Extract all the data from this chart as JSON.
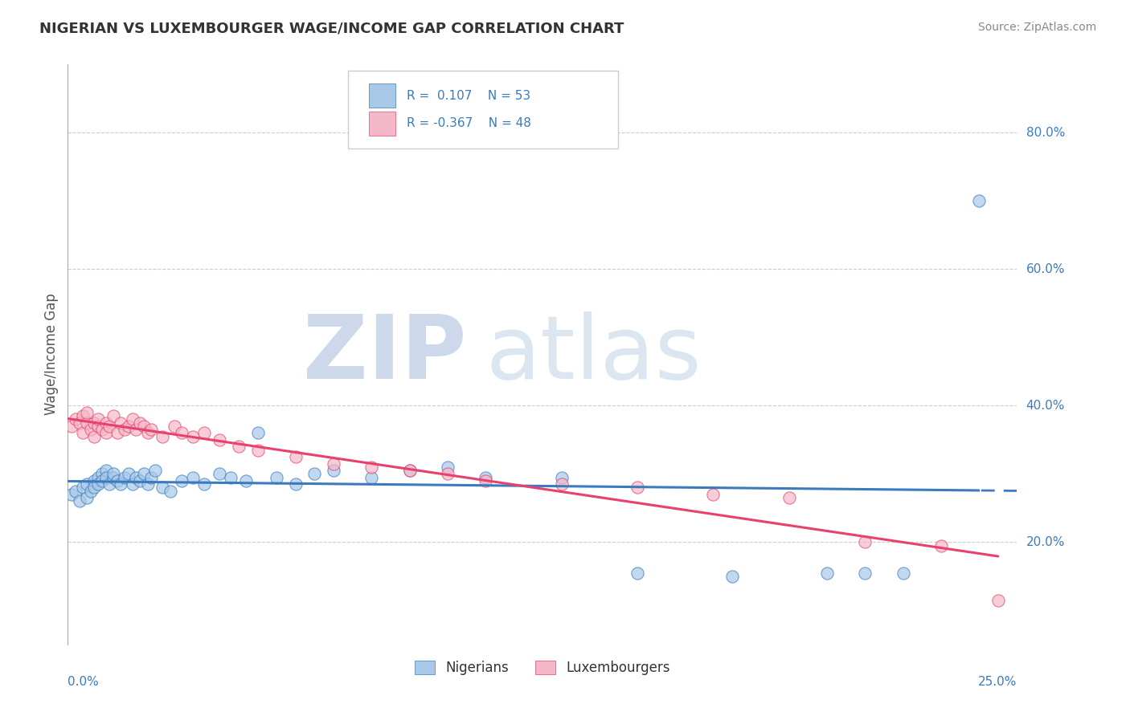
{
  "title": "NIGERIAN VS LUXEMBOURGER WAGE/INCOME GAP CORRELATION CHART",
  "source": "Source: ZipAtlas.com",
  "ylabel": "Wage/Income Gap",
  "legend_label1": "Nigerians",
  "legend_label2": "Luxembourgers",
  "R1": 0.107,
  "N1": 53,
  "R2": -0.367,
  "N2": 48,
  "blue_color": "#a8c8e8",
  "pink_color": "#f4b8c8",
  "trend_blue": "#3a7bbf",
  "trend_pink": "#e8416e",
  "xlim": [
    0,
    0.25
  ],
  "ylim": [
    0.05,
    0.9
  ],
  "ytick_vals": [
    0.2,
    0.4,
    0.6,
    0.8
  ],
  "ytick_labels": [
    "20.0%",
    "40.0%",
    "60.0%",
    "80.0%"
  ],
  "nigerian_x": [
    0.001,
    0.002,
    0.003,
    0.004,
    0.005,
    0.005,
    0.006,
    0.007,
    0.007,
    0.008,
    0.008,
    0.009,
    0.009,
    0.01,
    0.01,
    0.011,
    0.012,
    0.012,
    0.013,
    0.014,
    0.015,
    0.016,
    0.017,
    0.018,
    0.019,
    0.02,
    0.021,
    0.022,
    0.023,
    0.025,
    0.027,
    0.03,
    0.033,
    0.036,
    0.04,
    0.043,
    0.047,
    0.05,
    0.055,
    0.06,
    0.065,
    0.07,
    0.08,
    0.09,
    0.1,
    0.11,
    0.13,
    0.15,
    0.175,
    0.2,
    0.21,
    0.22,
    0.24
  ],
  "nigerian_y": [
    0.27,
    0.275,
    0.26,
    0.28,
    0.265,
    0.285,
    0.275,
    0.29,
    0.28,
    0.295,
    0.285,
    0.3,
    0.29,
    0.305,
    0.295,
    0.285,
    0.295,
    0.3,
    0.29,
    0.285,
    0.295,
    0.3,
    0.285,
    0.295,
    0.29,
    0.3,
    0.285,
    0.295,
    0.305,
    0.28,
    0.275,
    0.29,
    0.295,
    0.285,
    0.3,
    0.295,
    0.29,
    0.36,
    0.295,
    0.285,
    0.3,
    0.305,
    0.295,
    0.305,
    0.31,
    0.295,
    0.295,
    0.155,
    0.15,
    0.155,
    0.155,
    0.155,
    0.7
  ],
  "luxembourger_x": [
    0.001,
    0.002,
    0.003,
    0.004,
    0.004,
    0.005,
    0.005,
    0.006,
    0.007,
    0.007,
    0.008,
    0.008,
    0.009,
    0.01,
    0.01,
    0.011,
    0.012,
    0.013,
    0.014,
    0.015,
    0.016,
    0.017,
    0.018,
    0.019,
    0.02,
    0.021,
    0.022,
    0.025,
    0.028,
    0.03,
    0.033,
    0.036,
    0.04,
    0.045,
    0.05,
    0.06,
    0.07,
    0.08,
    0.09,
    0.1,
    0.11,
    0.13,
    0.15,
    0.17,
    0.19,
    0.21,
    0.23,
    0.245
  ],
  "luxembourger_y": [
    0.37,
    0.38,
    0.375,
    0.385,
    0.36,
    0.375,
    0.39,
    0.365,
    0.375,
    0.355,
    0.37,
    0.38,
    0.365,
    0.375,
    0.36,
    0.37,
    0.385,
    0.36,
    0.375,
    0.365,
    0.37,
    0.38,
    0.365,
    0.375,
    0.37,
    0.36,
    0.365,
    0.355,
    0.37,
    0.36,
    0.355,
    0.36,
    0.35,
    0.34,
    0.335,
    0.325,
    0.315,
    0.31,
    0.305,
    0.3,
    0.29,
    0.285,
    0.28,
    0.27,
    0.265,
    0.2,
    0.195,
    0.115
  ]
}
